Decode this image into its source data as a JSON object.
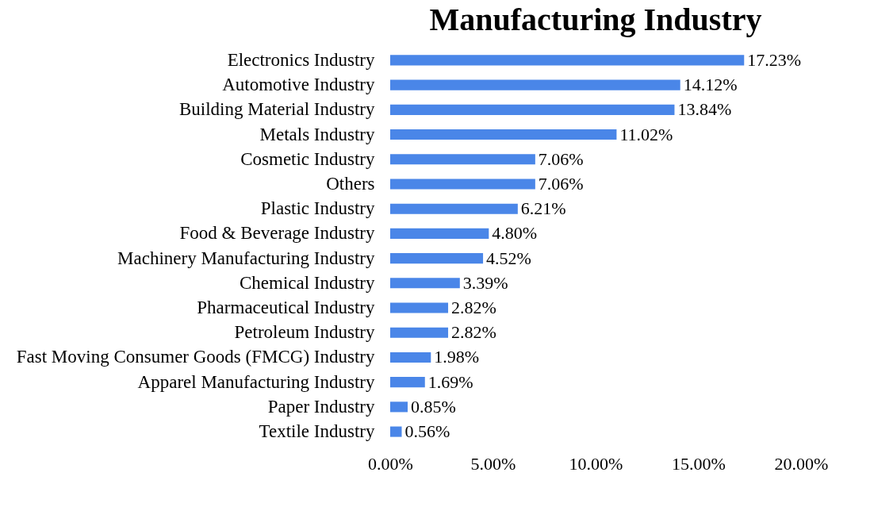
{
  "chart_data": {
    "type": "bar",
    "orientation": "horizontal",
    "title": "Manufacturing Industry",
    "categories": [
      "Electronics Industry",
      "Automotive Industry",
      "Building Material Industry",
      "Metals Industry",
      "Cosmetic Industry",
      "Others",
      "Plastic Industry",
      "Food & Beverage Industry",
      "Machinery Manufacturing Industry",
      "Chemical Industry",
      "Pharmaceutical Industry",
      "Petroleum Industry",
      "Fast Moving Consumer Goods (FMCG) Industry",
      "Apparel Manufacturing Industry",
      "Paper Industry",
      "Textile Industry"
    ],
    "values": [
      17.23,
      14.12,
      13.84,
      11.02,
      7.06,
      7.06,
      6.21,
      4.8,
      4.52,
      3.39,
      2.82,
      2.82,
      1.98,
      1.69,
      0.85,
      0.56
    ],
    "value_labels": [
      "17.23%",
      "14.12%",
      "13.84%",
      "11.02%",
      "7.06%",
      "7.06%",
      "6.21%",
      "4.80%",
      "4.52%",
      "3.39%",
      "2.82%",
      "2.82%",
      "1.98%",
      "1.69%",
      "0.85%",
      "0.56%"
    ],
    "color": "#4a86e8",
    "xlim": [
      0,
      20
    ],
    "xticks": [
      {
        "value": 0,
        "label": "0.00%"
      },
      {
        "value": 5,
        "label": "5.00%"
      },
      {
        "value": 10,
        "label": "10.00%"
      },
      {
        "value": 15,
        "label": "15.00%"
      },
      {
        "value": 20,
        "label": "20.00%"
      }
    ],
    "grid": false
  }
}
